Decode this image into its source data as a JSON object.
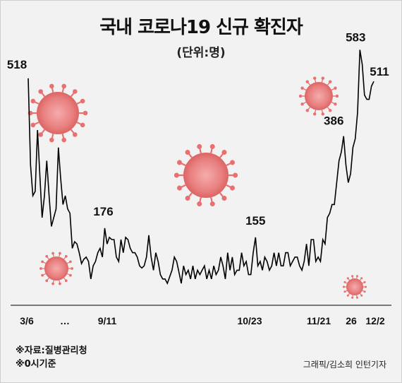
{
  "title": "국내 코로나19 신규 확진자",
  "unit": "(단위:명)",
  "source": "※자료:질병관리청",
  "note": "※0시기준",
  "credit": "그래픽/김소희 인턴기자",
  "chart_data": {
    "type": "line",
    "title": "국내 코로나19 신규 확진자",
    "ylabel": "(단위:명)",
    "x_tick_labels": [
      "3/6",
      "…",
      "9/11",
      "10/23",
      "11/21",
      "26",
      "12/2"
    ],
    "labeled_points": [
      {
        "label": "518",
        "value": 518
      },
      {
        "label": "176",
        "value": 176
      },
      {
        "label": "155",
        "value": 155
      },
      {
        "label": "386",
        "value": 386
      },
      {
        "label": "583",
        "value": 583
      },
      {
        "label": "511",
        "value": 511
      }
    ],
    "values": [
      518,
      320,
      250,
      260,
      400,
      300,
      200,
      250,
      330,
      250,
      180,
      200,
      220,
      360,
      290,
      230,
      250,
      220,
      210,
      130,
      145,
      140,
      120,
      95,
      105,
      110,
      100,
      60,
      90,
      100,
      120,
      130,
      110,
      176,
      140,
      155,
      150,
      150,
      110,
      100,
      150,
      120,
      155,
      150,
      130,
      120,
      120,
      110,
      90,
      85,
      90,
      110,
      160,
      110,
      80,
      120,
      100,
      70,
      60,
      60,
      50,
      65,
      80,
      110,
      100,
      75,
      50,
      90,
      70,
      80,
      60,
      90,
      60,
      80,
      70,
      80,
      90,
      60,
      80,
      60,
      90,
      70,
      80,
      110,
      90,
      60,
      120,
      80,
      110,
      70,
      80,
      80,
      120,
      90,
      100,
      70,
      70,
      120,
      155,
      90,
      100,
      80,
      110,
      100,
      80,
      90,
      120,
      90,
      120,
      90,
      90,
      120,
      120,
      90,
      100,
      110,
      110,
      90,
      80,
      100,
      140,
      90,
      150,
      150,
      100,
      110,
      100,
      150,
      140,
      200,
      210,
      230,
      230,
      280,
      330,
      350,
      386,
      320,
      280,
      300,
      360,
      380,
      440,
      583,
      550,
      480,
      470,
      470,
      500,
      511
    ],
    "ylim": [
      0,
      600
    ],
    "grid": false,
    "line_color": "#000000"
  },
  "decorations": {
    "virus_color": "#e85a5a",
    "virus_icon": "coronavirus-icon"
  }
}
